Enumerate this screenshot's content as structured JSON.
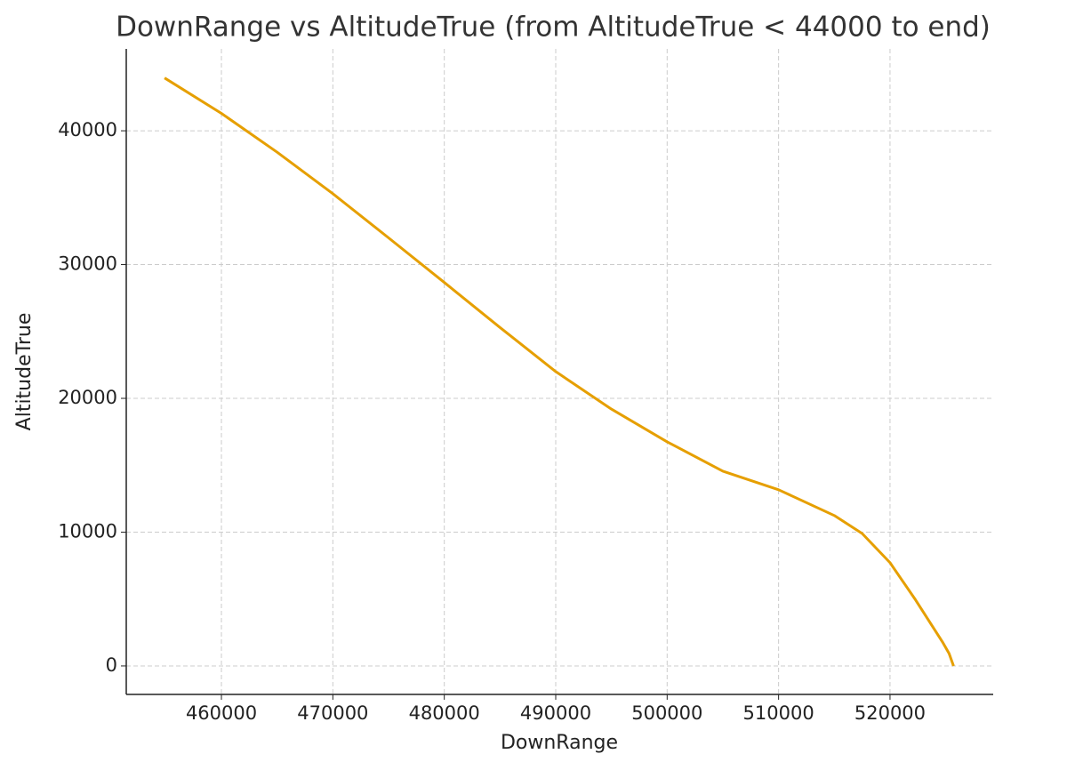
{
  "chart_data": {
    "type": "line",
    "title": "DownRange vs AltitudeTrue (from AltitudeTrue < 44000 to end)",
    "x_label": "DownRange",
    "y_label": "AltitudeTrue",
    "x": [
      454900,
      460000,
      465000,
      470000,
      475000,
      480000,
      485000,
      490000,
      495000,
      500000,
      505000,
      510000,
      515000,
      517500,
      520000,
      522300,
      524700,
      525300,
      525700
    ],
    "values": [
      43950,
      41300,
      38400,
      35300,
      32000,
      28660,
      25300,
      22000,
      19200,
      16750,
      14560,
      13170,
      11240,
      9900,
      7710,
      4920,
      1800,
      930,
      0
    ],
    "color": "#e69f00",
    "xlim": [
      451460,
      529260
    ],
    "xticks": [
      460000,
      470000,
      480000,
      490000,
      500000,
      510000,
      520000
    ],
    "ylim": [
      -2130,
      46120
    ],
    "yticks": [
      0,
      10000,
      20000,
      30000,
      40000
    ],
    "grid": true
  }
}
